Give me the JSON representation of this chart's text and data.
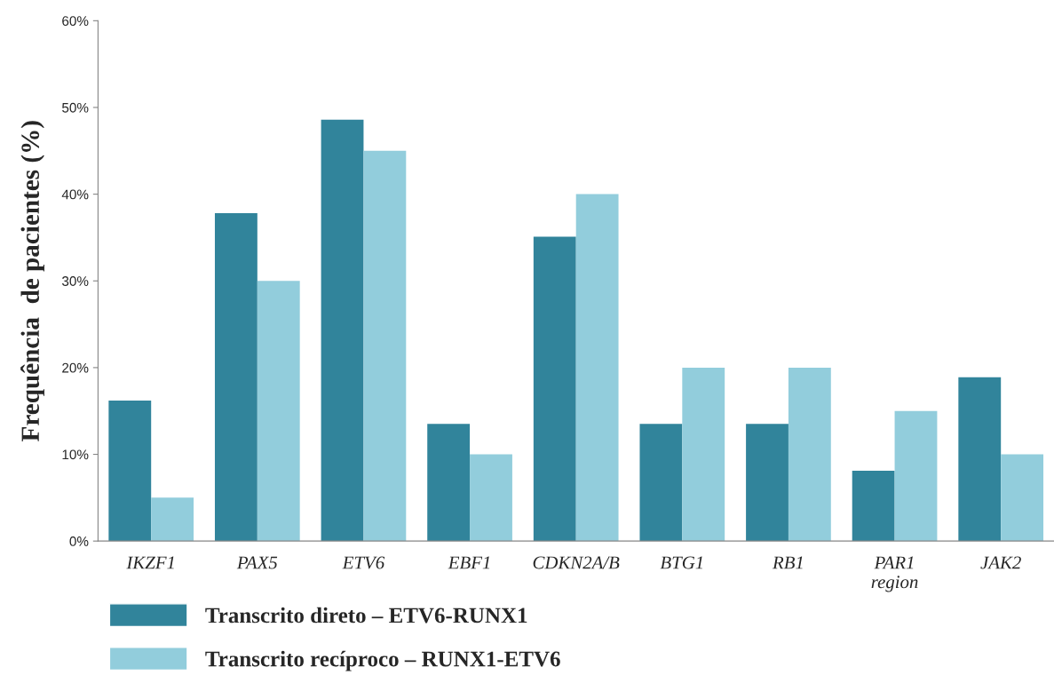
{
  "chart_data": {
    "type": "bar",
    "ylabel": "Frequência  de pacientes (%)",
    "categories": [
      "IKZF1",
      "PAX5",
      "ETV6",
      "EBF1",
      "CDKN2A/B",
      "BTG1",
      "RB1",
      "PAR1\nregion",
      "JAK2"
    ],
    "series": [
      {
        "name": "Transcrito direto – ETV6-RUNX1",
        "color": "#31849b",
        "values": [
          16.2,
          37.8,
          48.6,
          13.5,
          35.1,
          13.5,
          13.5,
          8.1,
          18.9
        ]
      },
      {
        "name": "Transcrito recíproco – RUNX1-ETV6",
        "color": "#92cddc",
        "values": [
          5,
          30,
          45,
          10,
          40,
          20,
          20,
          15,
          10
        ]
      }
    ],
    "ylim": [
      0,
      60
    ],
    "yticks": [
      {
        "value": 0,
        "label": "0%"
      },
      {
        "value": 10,
        "label": "10%"
      },
      {
        "value": 20,
        "label": "20%"
      },
      {
        "value": 30,
        "label": "30%"
      },
      {
        "value": 40,
        "label": "40%"
      },
      {
        "value": 50,
        "label": "50%"
      },
      {
        "value": 60,
        "label": "60%"
      }
    ],
    "grid": false,
    "legend": "bottom left"
  }
}
